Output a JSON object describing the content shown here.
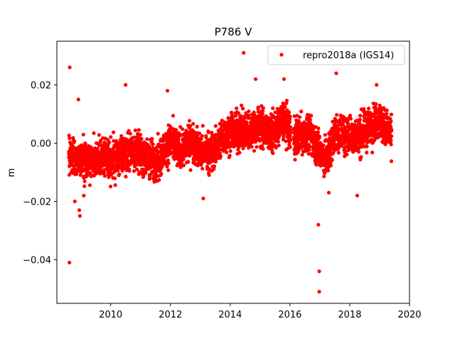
{
  "chart_data": {
    "type": "scatter",
    "title": "P786 V",
    "xlabel": "",
    "ylabel": "m",
    "xlim": [
      2008.2,
      2020.0
    ],
    "ylim": [
      -0.055,
      0.035
    ],
    "xticks": [
      2010,
      2012,
      2014,
      2016,
      2018,
      2020
    ],
    "yticks": [
      -0.04,
      -0.02,
      0.0,
      0.02
    ],
    "ytick_labels": [
      "−0.04",
      "−0.02",
      "0.00",
      "0.02"
    ],
    "grid": false,
    "legend": {
      "position": "upper right",
      "entries": [
        "repro2018a (IGS14)"
      ]
    },
    "colors": {
      "series": "#ff0000",
      "axis": "#000000",
      "background": "#ffffff"
    },
    "series": [
      {
        "name": "repro2018a (IGS14)",
        "trend": [
          [
            2008.6,
            -0.004
          ],
          [
            2008.9,
            -0.006
          ],
          [
            2009.3,
            -0.006
          ],
          [
            2009.7,
            -0.005
          ],
          [
            2010.0,
            -0.006
          ],
          [
            2010.4,
            -0.004
          ],
          [
            2010.8,
            -0.002
          ],
          [
            2011.2,
            -0.005
          ],
          [
            2011.6,
            -0.006
          ],
          [
            2012.0,
            0.001
          ],
          [
            2012.3,
            -0.003
          ],
          [
            2012.7,
            0.001
          ],
          [
            2013.0,
            -0.003
          ],
          [
            2013.4,
            -0.003
          ],
          [
            2013.8,
            0.003
          ],
          [
            2014.2,
            0.004
          ],
          [
            2014.6,
            0.004
          ],
          [
            2015.0,
            0.006
          ],
          [
            2015.4,
            0.003
          ],
          [
            2015.8,
            0.008
          ],
          [
            2016.1,
            0.002
          ],
          [
            2016.4,
            0.003
          ],
          [
            2016.7,
            0.003
          ],
          [
            2016.95,
            -0.002
          ],
          [
            2017.2,
            -0.006
          ],
          [
            2017.5,
            0.003
          ],
          [
            2017.9,
            0.003
          ],
          [
            2018.3,
            0.002
          ],
          [
            2018.7,
            0.006
          ],
          [
            2019.0,
            0.008
          ],
          [
            2019.4,
            0.002
          ]
        ],
        "outliers": [
          [
            2008.63,
            0.026
          ],
          [
            2008.62,
            -0.041
          ],
          [
            2008.8,
            -0.02
          ],
          [
            2008.92,
            0.015
          ],
          [
            2008.95,
            -0.023
          ],
          [
            2008.97,
            -0.025
          ],
          [
            2009.1,
            -0.018
          ],
          [
            2010.5,
            0.02
          ],
          [
            2011.9,
            0.018
          ],
          [
            2013.1,
            -0.019
          ],
          [
            2014.45,
            0.031
          ],
          [
            2014.85,
            0.022
          ],
          [
            2015.8,
            0.022
          ],
          [
            2016.95,
            -0.028
          ],
          [
            2016.98,
            -0.044
          ],
          [
            2016.98,
            -0.051
          ],
          [
            2017.55,
            0.024
          ],
          [
            2018.25,
            -0.018
          ],
          [
            2017.3,
            -0.017
          ],
          [
            2018.9,
            0.02
          ]
        ]
      }
    ]
  }
}
